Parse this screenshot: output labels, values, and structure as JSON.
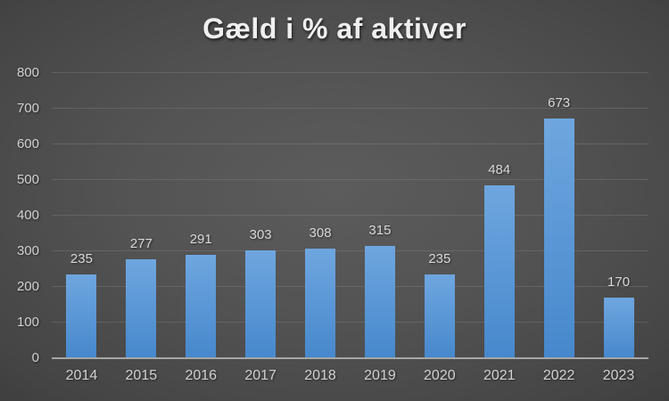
{
  "chart_data": {
    "type": "bar",
    "title": "Gæld i % af aktiver",
    "categories": [
      "2014",
      "2015",
      "2016",
      "2017",
      "2018",
      "2019",
      "2020",
      "2021",
      "2022",
      "2023"
    ],
    "values": [
      235,
      277,
      291,
      303,
      308,
      315,
      235,
      484,
      673,
      170
    ],
    "xlabel": "",
    "ylabel": "",
    "ylim": [
      0,
      800
    ],
    "yticks": [
      0,
      100,
      200,
      300,
      400,
      500,
      600,
      700,
      800
    ],
    "grid": "horizontal",
    "legend": "none",
    "colors": {
      "bar_top": "#6FA6DF",
      "bar_bottom": "#4688CC",
      "axis_line": "#A6A6A6",
      "gridline": "#8A8A8A",
      "gridline_opacity": "0.35",
      "tick_label": "#D2D2D2",
      "data_label": "#D9D9D9",
      "title": "#EFEFEF",
      "background_center": "#5C5C5C",
      "background_edge": "#242424"
    }
  }
}
